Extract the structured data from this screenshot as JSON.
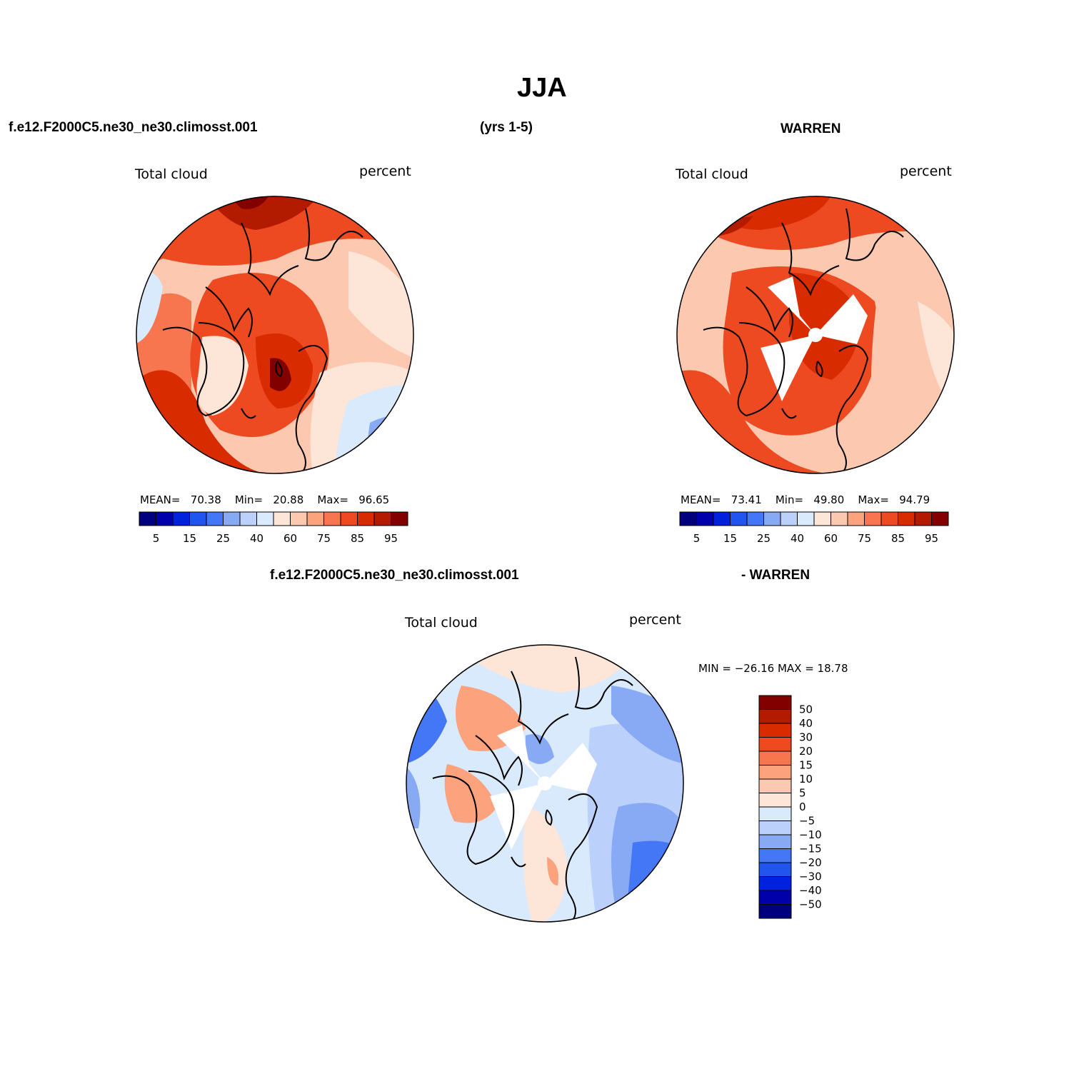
{
  "header": {
    "title": "JJA",
    "case_left": "f.e12.F2000C5.ne30_ne30.climosst.001",
    "years": "(yrs 1-5)",
    "case_right": "WARREN",
    "diff_left": "f.e12.F2000C5.ne30_ne30.climosst.001",
    "diff_right": "- WARREN"
  },
  "panels": [
    {
      "variable": "Total cloud",
      "units": "percent",
      "mean_label": "MEAN=",
      "mean_value": "70.38",
      "min_label": "Min=",
      "min_value": "20.88",
      "max_label": "Max=",
      "max_value": "96.65"
    },
    {
      "variable": "Total cloud",
      "units": "percent",
      "mean_label": "MEAN=",
      "mean_value": "73.41",
      "min_label": "Min=",
      "min_value": "49.80",
      "max_label": "Max=",
      "max_value": "94.79"
    }
  ],
  "diff_panel": {
    "variable": "Total cloud",
    "units": "percent",
    "minmax_text": "MIN = −26.16  MAX =   18.78"
  },
  "colorbar_abs": {
    "colors": [
      "#00007f",
      "#0000aa",
      "#0022dd",
      "#2255ee",
      "#4477f5",
      "#88aaf5",
      "#bbd0fa",
      "#d9eafc",
      "#fde5d8",
      "#fcc8b0",
      "#fca37e",
      "#f7764f",
      "#ee4a22",
      "#d92b00",
      "#b31b00",
      "#820000"
    ],
    "labels": [
      "5",
      "15",
      "25",
      "40",
      "60",
      "75",
      "85",
      "95"
    ]
  },
  "colorbar_diff": {
    "colors": [
      "#820000",
      "#b31b00",
      "#d92b00",
      "#ee4a22",
      "#f7764f",
      "#fca37e",
      "#fcc8b0",
      "#fde5d8",
      "#d9eafc",
      "#bbd0fa",
      "#88aaf5",
      "#4477f5",
      "#2255ee",
      "#0022dd",
      "#0000aa",
      "#00007f"
    ],
    "labels": [
      "50",
      "40",
      "30",
      "20",
      "15",
      "10",
      "5",
      "0",
      "−5",
      "−10",
      "−15",
      "−20",
      "−30",
      "−40",
      "−50"
    ]
  }
}
